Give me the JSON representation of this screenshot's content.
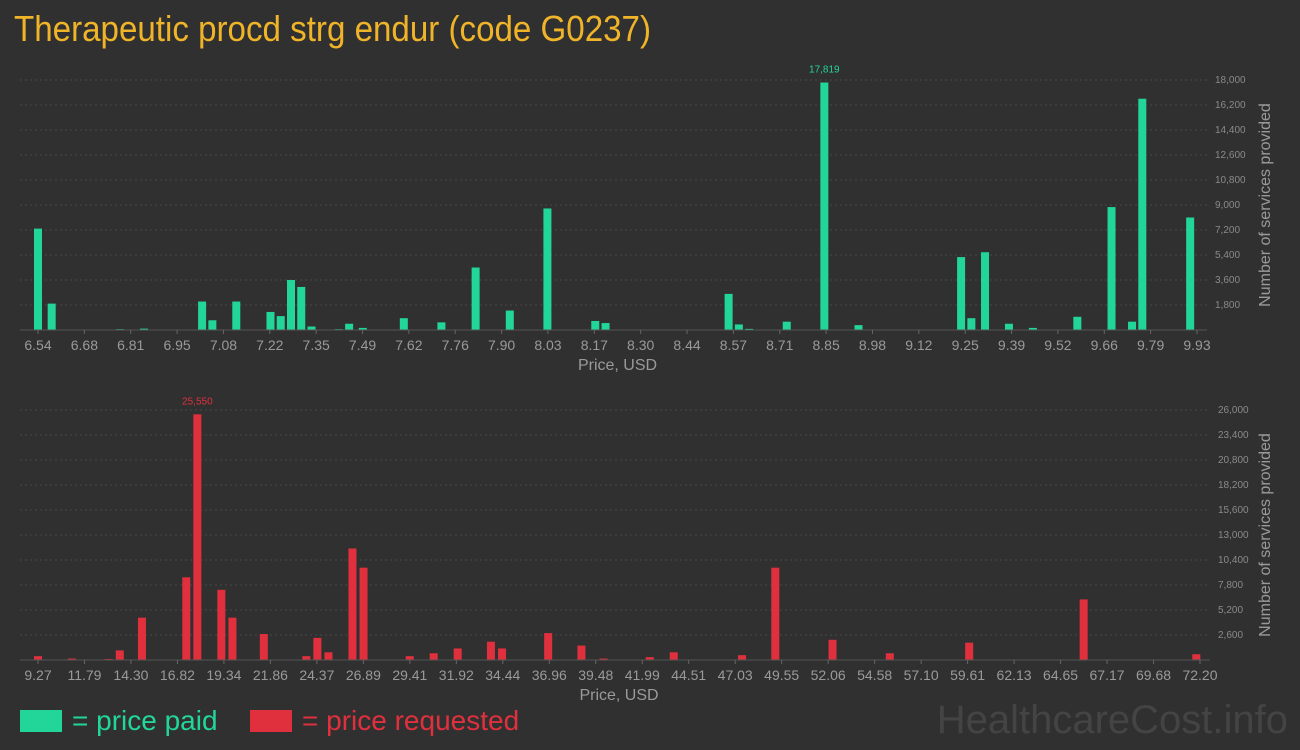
{
  "title": "Therapeutic procd strg endur (code G0237)",
  "colors": {
    "paid": "#22d69a",
    "requested": "#e0303e",
    "title": "#f0b429",
    "grid": "#4a4a4a"
  },
  "legend": {
    "paid_label": "= price paid",
    "requested_label": "= price requested"
  },
  "watermark": "HealthcareCost.info",
  "chart_data": [
    {
      "type": "bar",
      "name": "price paid",
      "xlabel": "Price, USD",
      "ylabel": "Number of services provided",
      "x_ticks": [
        "6.54",
        "6.68",
        "6.81",
        "6.95",
        "7.08",
        "7.22",
        "7.35",
        "7.49",
        "7.62",
        "7.76",
        "7.90",
        "8.03",
        "8.17",
        "8.30",
        "8.44",
        "8.57",
        "8.71",
        "8.85",
        "8.98",
        "9.12",
        "9.25",
        "9.39",
        "9.52",
        "9.66",
        "9.79",
        "9.93"
      ],
      "y_ticks": [
        "1,800",
        "3,600",
        "5,400",
        "7,200",
        "9,000",
        "10,800",
        "12,600",
        "14,400",
        "16,200",
        "18,000"
      ],
      "ylim": [
        0,
        18000
      ],
      "xlim": [
        6.54,
        9.93
      ],
      "peak_label": "17,819",
      "bars": [
        {
          "x": 6.54,
          "y": 7300
        },
        {
          "x": 6.58,
          "y": 1900
        },
        {
          "x": 6.78,
          "y": 60
        },
        {
          "x": 6.85,
          "y": 100
        },
        {
          "x": 7.02,
          "y": 2050
        },
        {
          "x": 7.05,
          "y": 700
        },
        {
          "x": 7.12,
          "y": 2050
        },
        {
          "x": 7.22,
          "y": 1300
        },
        {
          "x": 7.25,
          "y": 1000
        },
        {
          "x": 7.28,
          "y": 3600
        },
        {
          "x": 7.31,
          "y": 3100
        },
        {
          "x": 7.34,
          "y": 250
        },
        {
          "x": 7.42,
          "y": 60
        },
        {
          "x": 7.45,
          "y": 450
        },
        {
          "x": 7.49,
          "y": 150
        },
        {
          "x": 7.61,
          "y": 850
        },
        {
          "x": 7.72,
          "y": 550
        },
        {
          "x": 7.82,
          "y": 4500
        },
        {
          "x": 7.92,
          "y": 1400
        },
        {
          "x": 8.03,
          "y": 8750
        },
        {
          "x": 8.17,
          "y": 650
        },
        {
          "x": 8.2,
          "y": 500
        },
        {
          "x": 8.56,
          "y": 2600
        },
        {
          "x": 8.59,
          "y": 400
        },
        {
          "x": 8.62,
          "y": 80
        },
        {
          "x": 8.73,
          "y": 600
        },
        {
          "x": 8.84,
          "y": 17819
        },
        {
          "x": 8.94,
          "y": 350
        },
        {
          "x": 9.24,
          "y": 5250
        },
        {
          "x": 9.27,
          "y": 850
        },
        {
          "x": 9.31,
          "y": 5600
        },
        {
          "x": 9.38,
          "y": 450
        },
        {
          "x": 9.45,
          "y": 150
        },
        {
          "x": 9.58,
          "y": 950
        },
        {
          "x": 9.68,
          "y": 8850
        },
        {
          "x": 9.74,
          "y": 600
        },
        {
          "x": 9.77,
          "y": 16650
        },
        {
          "x": 9.91,
          "y": 8100
        }
      ]
    },
    {
      "type": "bar",
      "name": "price requested",
      "xlabel": "Price, USD",
      "ylabel": "Number of services provided",
      "x_ticks": [
        "9.27",
        "11.79",
        "14.30",
        "16.82",
        "19.34",
        "21.86",
        "24.37",
        "26.89",
        "29.41",
        "31.92",
        "34.44",
        "36.96",
        "39.48",
        "41.99",
        "44.51",
        "47.03",
        "49.55",
        "52.06",
        "54.58",
        "57.10",
        "59.61",
        "62.13",
        "64.65",
        "67.17",
        "69.68",
        "72.20"
      ],
      "y_ticks": [
        "2,600",
        "5,200",
        "7,800",
        "10,400",
        "13,000",
        "15,600",
        "18,200",
        "20,800",
        "23,400",
        "26,000"
      ],
      "ylim": [
        0,
        26000
      ],
      "xlim": [
        9.27,
        72.2
      ],
      "peak_label": "25,550",
      "bars": [
        {
          "x": 9.27,
          "y": 400
        },
        {
          "x": 11.1,
          "y": 150
        },
        {
          "x": 13.1,
          "y": 100
        },
        {
          "x": 13.7,
          "y": 1000
        },
        {
          "x": 14.9,
          "y": 4400
        },
        {
          "x": 17.3,
          "y": 8600
        },
        {
          "x": 17.9,
          "y": 25550
        },
        {
          "x": 19.2,
          "y": 7300
        },
        {
          "x": 19.8,
          "y": 4400
        },
        {
          "x": 21.5,
          "y": 2700
        },
        {
          "x": 23.8,
          "y": 400
        },
        {
          "x": 24.4,
          "y": 2300
        },
        {
          "x": 25.0,
          "y": 800
        },
        {
          "x": 26.3,
          "y": 11600
        },
        {
          "x": 26.9,
          "y": 9600
        },
        {
          "x": 29.4,
          "y": 400
        },
        {
          "x": 30.7,
          "y": 700
        },
        {
          "x": 32.0,
          "y": 1200
        },
        {
          "x": 33.8,
          "y": 1900
        },
        {
          "x": 34.4,
          "y": 1200
        },
        {
          "x": 36.9,
          "y": 2800
        },
        {
          "x": 38.7,
          "y": 1500
        },
        {
          "x": 39.9,
          "y": 150
        },
        {
          "x": 42.4,
          "y": 300
        },
        {
          "x": 43.7,
          "y": 800
        },
        {
          "x": 47.4,
          "y": 500
        },
        {
          "x": 49.2,
          "y": 9600
        },
        {
          "x": 52.3,
          "y": 2100
        },
        {
          "x": 55.4,
          "y": 700
        },
        {
          "x": 59.7,
          "y": 1800
        },
        {
          "x": 65.9,
          "y": 6300
        },
        {
          "x": 72.0,
          "y": 600
        }
      ]
    }
  ]
}
